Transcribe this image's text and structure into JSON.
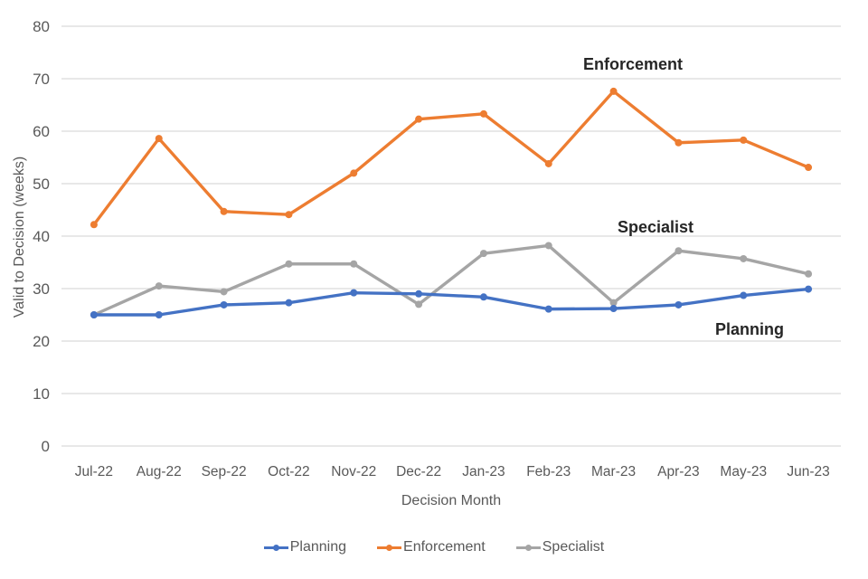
{
  "chart_data": {
    "type": "line",
    "title": "",
    "xlabel": "Decision Month",
    "ylabel": "Valid to Decision (weeks)",
    "x": [
      "Jul-22",
      "Aug-22",
      "Sep-22",
      "Oct-22",
      "Nov-22",
      "Dec-22",
      "Jan-23",
      "Feb-23",
      "Mar-23",
      "Apr-23",
      "May-23",
      "Jun-23"
    ],
    "ylim": [
      0,
      80
    ],
    "ytick_step": 10,
    "grid": "horizontal",
    "legend_position": "bottom",
    "series": [
      {
        "name": "Specialist",
        "color": "#A5A5A5",
        "values": [
          25.0,
          30.5,
          29.4,
          34.7,
          34.7,
          27.0,
          36.7,
          38.2,
          27.3,
          37.2,
          35.7,
          32.8
        ]
      },
      {
        "name": "Planning",
        "color": "#4472C4",
        "values": [
          25.0,
          25.0,
          26.9,
          27.3,
          29.2,
          29.0,
          28.4,
          26.1,
          26.2,
          26.9,
          28.7,
          29.9
        ]
      },
      {
        "name": "Enforcement",
        "color": "#ED7D31",
        "values": [
          42.2,
          58.6,
          44.7,
          44.1,
          52.0,
          62.3,
          63.3,
          53.8,
          67.6,
          57.8,
          58.3,
          53.1
        ]
      }
    ],
    "annotations": [
      {
        "text": "Enforcement"
      },
      {
        "text": "Specialist"
      },
      {
        "text": "Planning"
      }
    ],
    "legend": [
      {
        "label": "Planning",
        "color": "#4472C4"
      },
      {
        "label": "Enforcement",
        "color": "#ED7D31"
      },
      {
        "label": "Specialist",
        "color": "#A5A5A5"
      }
    ],
    "axis_text_color": "#595959",
    "gridline_color": "#d9d9d9"
  }
}
